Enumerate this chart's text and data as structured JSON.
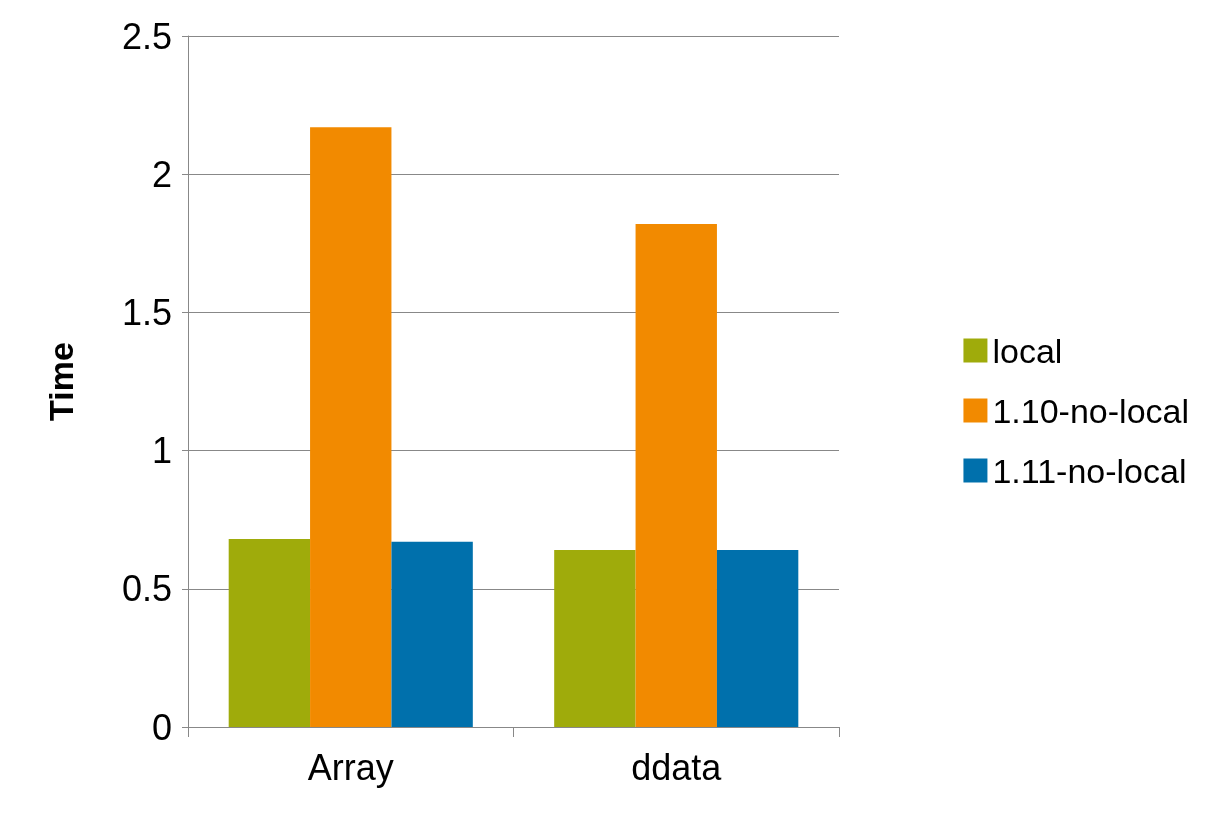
{
  "chart_data": {
    "type": "bar",
    "ylabel": "Time",
    "categories": [
      "Array",
      "ddata"
    ],
    "series": [
      {
        "name": "local",
        "color": "#9fab0b",
        "values": [
          0.68,
          0.64
        ]
      },
      {
        "name": "1.10-no-local",
        "color": "#f28a00",
        "values": [
          2.17,
          1.82
        ]
      },
      {
        "name": "1.11-no-local",
        "color": "#0070ac",
        "values": [
          0.67,
          0.64
        ]
      }
    ],
    "ylim": [
      0,
      2.5
    ],
    "yticks": [
      0,
      0.5,
      1,
      1.5,
      2,
      2.5
    ],
    "grid": "y",
    "legend": "right"
  }
}
